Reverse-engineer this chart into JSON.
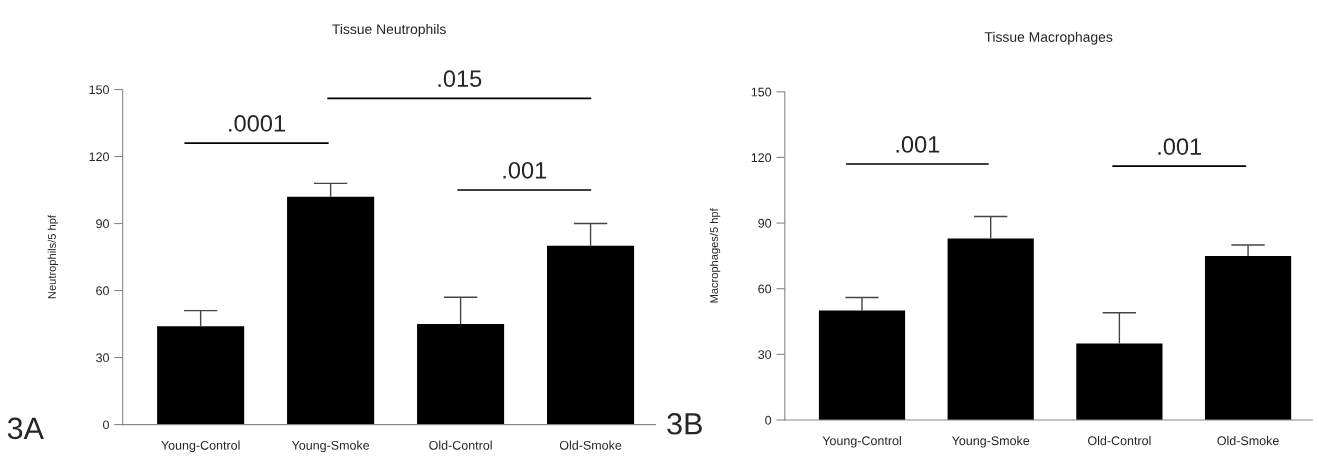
{
  "chart_data": [
    {
      "type": "bar",
      "title": "Tissue Neutrophils",
      "ylabel": "Neutrophils/5 hpf",
      "categories": [
        "Young-Control",
        "Young-Smoke",
        "Old-Control",
        "Old-Smoke"
      ],
      "values": [
        44,
        102,
        45,
        80
      ],
      "color": "#000000",
      "errors": [
        [
          44,
          51
        ],
        [
          102,
          108
        ],
        [
          45,
          57
        ],
        [
          80,
          90
        ]
      ],
      "ylim": [
        0,
        150
      ],
      "yticks": [
        0,
        30,
        60,
        90,
        120,
        150
      ],
      "grid": false,
      "annotations": [
        ".0001",
        ".015",
        ".001",
        "3A"
      ]
    },
    {
      "type": "bar",
      "title": "Tissue Macrophages",
      "ylabel": "Macrophages/5 hpf",
      "categories": [
        "Young-Control",
        "Young-Smoke",
        "Old-Control",
        "Old-Smoke"
      ],
      "values": [
        50,
        83,
        35,
        75
      ],
      "color": "#000000",
      "errors": [
        [
          50,
          56
        ],
        [
          83,
          93
        ],
        [
          35,
          49
        ],
        [
          75,
          80
        ]
      ],
      "ylim": [
        0,
        150
      ],
      "yticks": [
        0,
        30,
        60,
        90,
        120,
        150
      ],
      "grid": false,
      "annotations": [
        ".001",
        ".001",
        "3B"
      ]
    }
  ]
}
